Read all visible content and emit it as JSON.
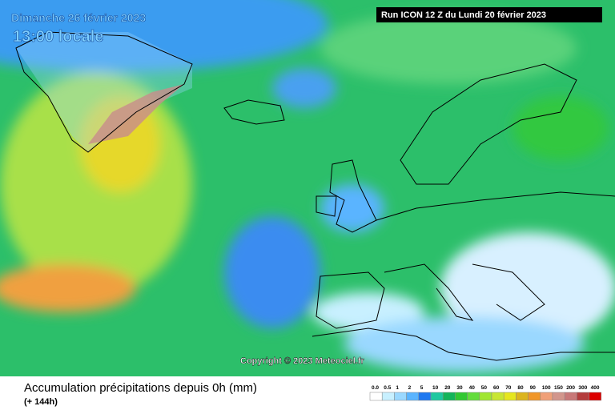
{
  "header": {
    "date": "Dimanche 26 février 2023",
    "time": "13:00 locale",
    "run": "Run ICON 12 Z du Lundi 20 février 2023"
  },
  "map": {
    "copyright": "Copyright © 2023 Meteociel.fr"
  },
  "footer": {
    "title": "Accumulation précipitations depuis 0h (mm)",
    "lead": "(+ 144h)"
  },
  "legend": {
    "levels": [
      {
        "label": "0.0",
        "color": "#ffffff"
      },
      {
        "label": "0.5",
        "color": "#c8f0ff"
      },
      {
        "label": "1",
        "color": "#9ad8ff"
      },
      {
        "label": "2",
        "color": "#5ab4ff"
      },
      {
        "label": "5",
        "color": "#1e78f0"
      },
      {
        "label": "10",
        "color": "#1ec8a0"
      },
      {
        "label": "20",
        "color": "#14b45a"
      },
      {
        "label": "30",
        "color": "#32c832"
      },
      {
        "label": "40",
        "color": "#64dc3c"
      },
      {
        "label": "50",
        "color": "#a0e632"
      },
      {
        "label": "60",
        "color": "#c8e632"
      },
      {
        "label": "70",
        "color": "#e6e61e"
      },
      {
        "label": "80",
        "color": "#dcb41e"
      },
      {
        "label": "90",
        "color": "#f09628"
      },
      {
        "label": "100",
        "color": "#f0a078"
      },
      {
        "label": "150",
        "color": "#d2968c"
      },
      {
        "label": "200",
        "color": "#c87878"
      },
      {
        "label": "300",
        "color": "#b43c3c"
      },
      {
        "label": "400",
        "color": "#dc0000"
      }
    ]
  }
}
